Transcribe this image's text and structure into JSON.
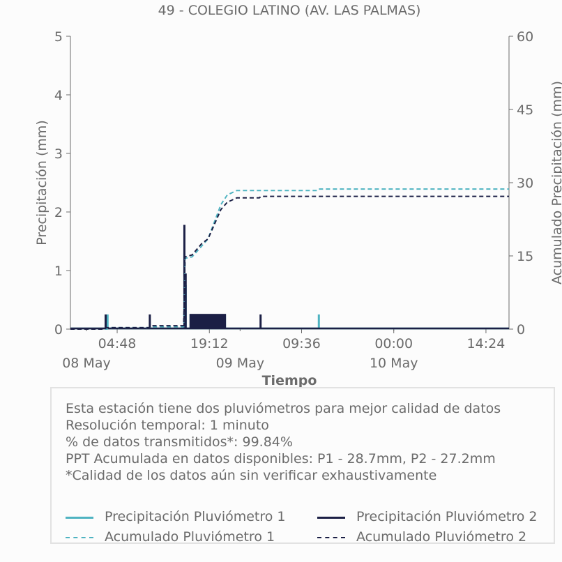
{
  "chart_data": {
    "type": "line",
    "title": "49 - COLEGIO LATINO (AV. LAS PALMAS)",
    "xlabel": "Tiempo",
    "ylabel_left": "Precipitación (mm)",
    "ylabel_right": "Acumulado Precipitación (mm)",
    "ylim_left": [
      0,
      5
    ],
    "ylim_right": [
      0,
      60
    ],
    "yticks_left": [
      "0",
      "1",
      "2",
      "3",
      "4",
      "5"
    ],
    "yticks_right": [
      "0",
      "15",
      "30",
      "45",
      "60"
    ],
    "x_range_hours": [
      -2.5,
      66
    ],
    "x_tick_hours": [
      4.8,
      19.2,
      33.6,
      48.0,
      62.4
    ],
    "x_tick_labels": [
      "04:48",
      "19:12",
      "09:36",
      "00:00",
      "14:24"
    ],
    "x_date_hours": [
      0,
      24,
      48
    ],
    "x_date_labels": [
      "08 May",
      "09 May",
      "10 May"
    ],
    "x_unit": "hours since 08 May 00:00",
    "grid": false,
    "colors": {
      "p1": "#4eb3c1",
      "p2": "#1b1f45"
    },
    "series": [
      {
        "name": "Precipitación Pluviómetro 1",
        "style": "solid",
        "color_key": "p1",
        "axis": "left",
        "spikes": [
          [
            3.3,
            0.25
          ],
          [
            15.3,
            1.3
          ],
          [
            15.5,
            0.75
          ],
          [
            36.3,
            0.25
          ]
        ],
        "band": {
          "from": 16.1,
          "to": 21.8,
          "value": 0.25
        }
      },
      {
        "name": "Precipitación Pluviómetro 2",
        "style": "solid",
        "color_key": "p2",
        "axis": "left",
        "spikes": [
          [
            3.0,
            0.25
          ],
          [
            9.9,
            0.25
          ],
          [
            15.3,
            1.78
          ],
          [
            15.5,
            0.95
          ],
          [
            27.2,
            0.25
          ]
        ],
        "band": {
          "from": 16.1,
          "to": 21.8,
          "value": 0.26
        }
      },
      {
        "name": "Acumulado Pluviómetro 1",
        "style": "dashed",
        "color_key": "p1",
        "axis": "right",
        "points": [
          [
            -2.5,
            0
          ],
          [
            3.2,
            0
          ],
          [
            3.3,
            0.3
          ],
          [
            9.8,
            0.3
          ],
          [
            10.0,
            0.5
          ],
          [
            15.2,
            0.5
          ],
          [
            15.4,
            14.5
          ],
          [
            16.5,
            14.8
          ],
          [
            18.0,
            17.0
          ],
          [
            19.0,
            18.5
          ],
          [
            20.0,
            22.0
          ],
          [
            21.0,
            25.5
          ],
          [
            22.0,
            27.5
          ],
          [
            23.5,
            28.4
          ],
          [
            36.2,
            28.4
          ],
          [
            36.4,
            28.7
          ],
          [
            66.0,
            28.7
          ]
        ]
      },
      {
        "name": "Acumulado Pluviómetro 2",
        "style": "dashed",
        "color_key": "p2",
        "axis": "right",
        "points": [
          [
            -2.5,
            0
          ],
          [
            2.9,
            0
          ],
          [
            3.1,
            0.3
          ],
          [
            9.8,
            0.3
          ],
          [
            10.0,
            0.7
          ],
          [
            15.2,
            0.7
          ],
          [
            15.4,
            14.8
          ],
          [
            16.5,
            15.2
          ],
          [
            18.0,
            17.5
          ],
          [
            19.0,
            18.5
          ],
          [
            20.0,
            21.5
          ],
          [
            21.0,
            24.5
          ],
          [
            22.0,
            26.0
          ],
          [
            23.5,
            26.9
          ],
          [
            27.0,
            26.9
          ],
          [
            27.3,
            27.2
          ],
          [
            66.0,
            27.2
          ]
        ]
      }
    ]
  },
  "info": {
    "line1": "Esta estación tiene dos pluviómetros para mejor calidad de datos",
    "line2": "Resolución temporal: 1 minuto",
    "line3": "% de datos transmitidos*: 99.84%",
    "line4": "PPT Acumulada en datos disponibles: P1 - 28.7mm, P2 - 27.2mm",
    "line5": "*Calidad de los datos aún sin verificar exhaustivamente"
  },
  "legend": {
    "p1": "Precipitación Pluviómetro 1",
    "p2": "Precipitación Pluviómetro 2",
    "a1": "Acumulado Pluviómetro 1",
    "a2": "Acumulado Pluviómetro 2"
  }
}
